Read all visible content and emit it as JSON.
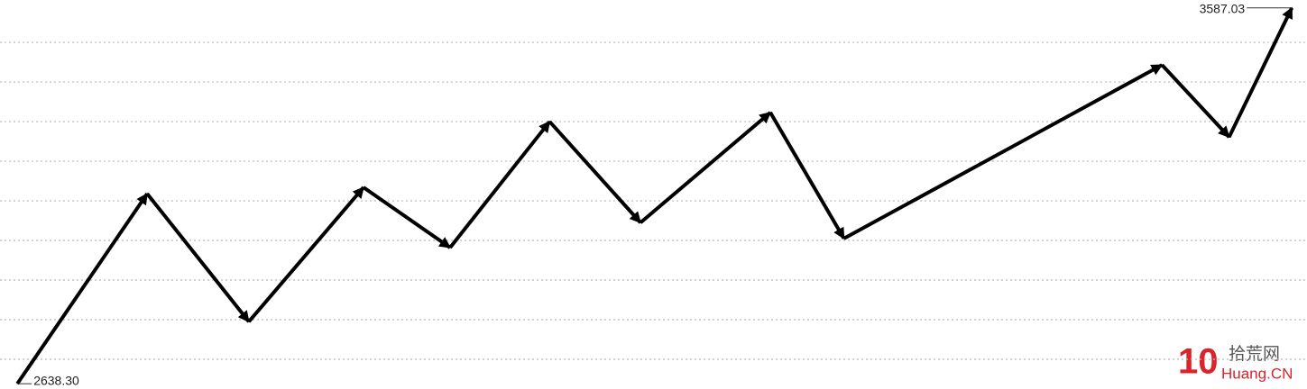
{
  "chart_data": {
    "type": "line",
    "x": [
      8,
      68,
      115,
      168,
      208,
      254,
      296,
      356,
      390,
      537,
      568,
      597
    ],
    "series": [
      {
        "color": "#000000",
        "values": [
          2638.3,
          3118,
          2795,
          3134,
          2982,
          3300,
          3045,
          3323,
          3005,
          3443,
          3261,
          3587.03
        ],
        "value_labels": [
          "2638.30",
          null,
          null,
          null,
          null,
          null,
          null,
          null,
          null,
          null,
          null,
          "3587.03"
        ]
      }
    ],
    "xlim": [
      0,
      604
    ],
    "ylim": [
      2625,
      3607
    ],
    "yticks": [
      2700,
      2800,
      2900,
      3000,
      3100,
      3200,
      3300,
      3400,
      3500
    ],
    "grid": true
  },
  "watermark": {
    "number": "10",
    "name": "拾荒网",
    "site": "Huang.CN"
  }
}
